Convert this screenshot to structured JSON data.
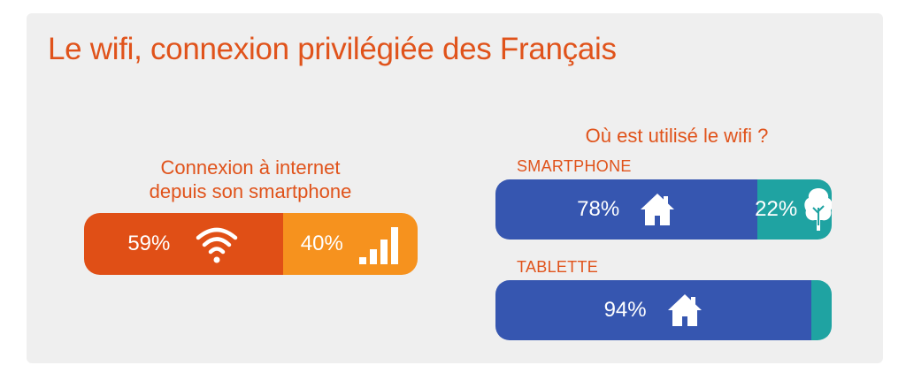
{
  "title": "Le wifi, connexion privilégiée des Français",
  "connection": {
    "title_line1": "Connexion à internet",
    "title_line2": "depuis son smartphone",
    "segments": [
      {
        "label": "59%",
        "value": 59,
        "icon": "wifi-icon",
        "color": "#e04f16"
      },
      {
        "label": "40%",
        "value": 40,
        "icon": "signal-bars-icon",
        "color": "#f6921e"
      }
    ]
  },
  "usage": {
    "title": "Où est utilisé le wifi ?",
    "smartphone": {
      "label": "SMARTPHONE",
      "segments": [
        {
          "label": "78%",
          "value": 78,
          "icon": "house-icon",
          "color": "#3656b0"
        },
        {
          "label": "22%",
          "value": 22,
          "icon": "tree-icon",
          "color": "#1fa3a2"
        }
      ]
    },
    "tablette": {
      "label": "TABLETTE",
      "segments": [
        {
          "label": "94%",
          "value": 94,
          "icon": "house-icon",
          "color": "#3656b0"
        },
        {
          "label": "",
          "value": 6,
          "icon": "",
          "color": "#1fa3a2"
        }
      ]
    }
  },
  "chart_data": [
    {
      "type": "bar",
      "title": "Connexion à internet depuis son smartphone",
      "categories": [
        "wifi",
        "réseau mobile"
      ],
      "values": [
        59,
        40
      ]
    },
    {
      "type": "bar",
      "title": "Où est utilisé le wifi ?",
      "categories": [
        "SMARTPHONE",
        "TABLETTE"
      ],
      "series": [
        {
          "name": "",
          "values": [
            78,
            94
          ]
        },
        {
          "name": "",
          "values": [
            22,
            6
          ]
        }
      ]
    }
  ]
}
